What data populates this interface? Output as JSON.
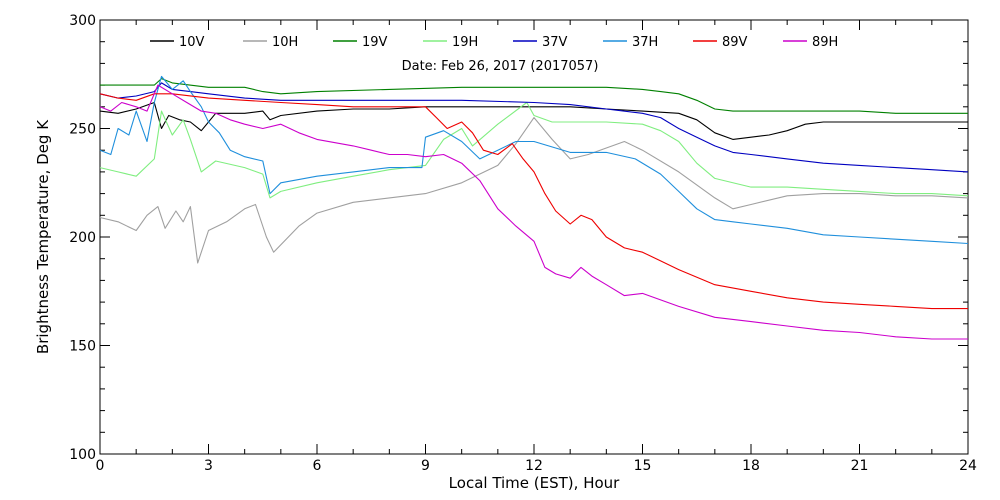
{
  "chart_data": {
    "type": "line",
    "title": "",
    "annotation": "Date: Feb 26, 2017 (2017057)",
    "xlabel": "Local Time (EST), Hour",
    "ylabel": "Brightness Temperature, Deg K",
    "xlim": [
      0,
      24
    ],
    "ylim": [
      100,
      300
    ],
    "xticks": [
      0,
      3,
      6,
      9,
      12,
      15,
      18,
      21,
      24
    ],
    "yticks": [
      100,
      150,
      200,
      250,
      300
    ],
    "grid": false,
    "legend_position": "top",
    "series": [
      {
        "name": "10V",
        "color": "#000000",
        "x": [
          0,
          0.5,
          1,
          1.5,
          1.7,
          1.9,
          2.2,
          2.5,
          2.8,
          3.2,
          4,
          4.5,
          4.7,
          5,
          6,
          7,
          8,
          9,
          10,
          11,
          12,
          13,
          14,
          15,
          16,
          16.5,
          17,
          17.5,
          18,
          18.5,
          19,
          19.5,
          20,
          21,
          22,
          23,
          24
        ],
        "y": [
          258,
          257,
          259,
          262,
          250,
          256,
          254,
          253,
          249,
          257,
          257,
          258,
          254,
          256,
          258,
          259,
          259,
          260,
          260,
          260,
          260,
          260,
          259,
          258,
          257,
          254,
          248,
          245,
          246,
          247,
          249,
          252,
          253,
          253,
          253,
          253,
          253
        ]
      },
      {
        "name": "10H",
        "color": "#a0a0a0",
        "x": [
          0,
          0.5,
          1,
          1.3,
          1.6,
          1.8,
          2.1,
          2.3,
          2.5,
          2.7,
          3,
          3.5,
          4,
          4.3,
          4.6,
          4.8,
          5.5,
          6,
          7,
          8,
          9,
          10,
          11,
          11.5,
          12,
          12.5,
          13,
          13.5,
          14,
          14.5,
          15,
          16,
          17,
          17.5,
          18,
          19,
          20,
          21,
          22,
          23,
          24
        ],
        "y": [
          209,
          207,
          203,
          210,
          214,
          204,
          212,
          207,
          214,
          188,
          203,
          207,
          213,
          215,
          200,
          193,
          205,
          211,
          216,
          218,
          220,
          225,
          233,
          243,
          255,
          245,
          236,
          238,
          241,
          244,
          240,
          230,
          218,
          213,
          215,
          219,
          220,
          220,
          219,
          219,
          218
        ]
      },
      {
        "name": "19V",
        "color": "#008000",
        "x": [
          0,
          1,
          1.5,
          1.7,
          2,
          3,
          4,
          4.5,
          5,
          6,
          8,
          10,
          12,
          14,
          15,
          15.5,
          16,
          16.5,
          17,
          17.5,
          18,
          19,
          20,
          21,
          22,
          23,
          24
        ],
        "y": [
          270,
          270,
          270,
          273,
          271,
          269,
          269,
          267,
          266,
          267,
          268,
          269,
          269,
          269,
          268,
          267,
          266,
          263,
          259,
          258,
          258,
          258,
          258,
          258,
          257,
          257,
          257
        ]
      },
      {
        "name": "19H",
        "color": "#80ee80",
        "x": [
          0,
          0.5,
          1,
          1.5,
          1.7,
          2,
          2.3,
          2.5,
          2.8,
          3.2,
          4,
          4.5,
          4.7,
          5,
          6,
          7,
          8,
          9,
          9.5,
          10,
          10.3,
          11,
          11.8,
          12,
          12.5,
          13,
          14,
          15,
          15.5,
          16,
          16.5,
          17,
          18,
          19,
          20,
          21,
          22,
          23,
          24
        ],
        "y": [
          232,
          230,
          228,
          236,
          258,
          247,
          254,
          245,
          230,
          235,
          232,
          229,
          218,
          221,
          225,
          228,
          231,
          233,
          245,
          250,
          242,
          252,
          262,
          256,
          253,
          253,
          253,
          252,
          249,
          244,
          234,
          227,
          223,
          223,
          222,
          221,
          220,
          220,
          219
        ]
      },
      {
        "name": "37V",
        "color": "#0000c0",
        "x": [
          0,
          0.5,
          1,
          1.5,
          1.7,
          2,
          2.5,
          3,
          4,
          5,
          6,
          8,
          10,
          12,
          13,
          14,
          15,
          15.5,
          16,
          16.5,
          17,
          17.5,
          18,
          19,
          20,
          21,
          22,
          23,
          24
        ],
        "y": [
          266,
          264,
          265,
          267,
          271,
          268,
          267,
          266,
          264,
          263,
          263,
          263,
          263,
          262,
          261,
          259,
          257,
          255,
          250,
          246,
          242,
          239,
          238,
          236,
          234,
          233,
          232,
          231,
          230
        ]
      },
      {
        "name": "37H",
        "color": "#1f8fdc",
        "x": [
          0,
          0.3,
          0.5,
          0.8,
          1,
          1.3,
          1.5,
          1.7,
          2,
          2.3,
          2.5,
          2.8,
          3,
          3.3,
          3.6,
          4,
          4.5,
          4.7,
          5,
          6,
          7,
          8,
          8.9,
          9,
          9.5,
          10,
          10.5,
          11,
          11.5,
          12,
          13,
          14,
          14.8,
          15.5,
          16,
          16.5,
          17,
          17.5,
          18,
          19,
          20,
          21,
          22,
          23,
          24
        ],
        "y": [
          240,
          238,
          250,
          247,
          258,
          244,
          262,
          274,
          268,
          272,
          267,
          260,
          253,
          248,
          240,
          237,
          235,
          220,
          225,
          228,
          230,
          232,
          232,
          246,
          249,
          244,
          236,
          240,
          244,
          244,
          239,
          239,
          236,
          229,
          221,
          213,
          208,
          207,
          206,
          204,
          201,
          200,
          199,
          198,
          197
        ]
      },
      {
        "name": "89V",
        "color": "#ee0000",
        "x": [
          0,
          0.5,
          1,
          1.5,
          2,
          3,
          4,
          5,
          6,
          7,
          8,
          9,
          9.3,
          9.6,
          10,
          10.3,
          10.6,
          11,
          11.4,
          11.7,
          12,
          12.3,
          12.6,
          13,
          13.3,
          13.6,
          14,
          14.5,
          15,
          15.5,
          16,
          17,
          18,
          19,
          20,
          21,
          22,
          23,
          24
        ],
        "y": [
          266,
          264,
          263,
          266,
          266,
          264,
          263,
          262,
          261,
          260,
          260,
          260,
          255,
          250,
          253,
          248,
          240,
          238,
          243,
          236,
          230,
          220,
          212,
          206,
          210,
          208,
          200,
          195,
          193,
          189,
          185,
          178,
          175,
          172,
          170,
          169,
          168,
          167,
          167
        ]
      },
      {
        "name": "89H",
        "color": "#cc00cc",
        "x": [
          0,
          0.3,
          0.6,
          1,
          1.3,
          1.6,
          2,
          2.4,
          2.8,
          3.2,
          3.6,
          4,
          4.5,
          5,
          5.5,
          6,
          7,
          7.5,
          8,
          8.5,
          9,
          9.5,
          10,
          10.5,
          11,
          11.5,
          12,
          12.3,
          12.6,
          13,
          13.3,
          13.6,
          14,
          14.5,
          15,
          15.5,
          16,
          17,
          18,
          19,
          20,
          21,
          22,
          23,
          24
        ],
        "y": [
          260,
          258,
          262,
          260,
          258,
          270,
          266,
          262,
          258,
          257,
          254,
          252,
          250,
          252,
          248,
          245,
          242,
          240,
          238,
          238,
          237,
          238,
          234,
          226,
          213,
          205,
          198,
          186,
          183,
          181,
          186,
          182,
          178,
          173,
          174,
          171,
          168,
          163,
          161,
          159,
          157,
          156,
          154,
          153,
          153
        ]
      }
    ]
  }
}
